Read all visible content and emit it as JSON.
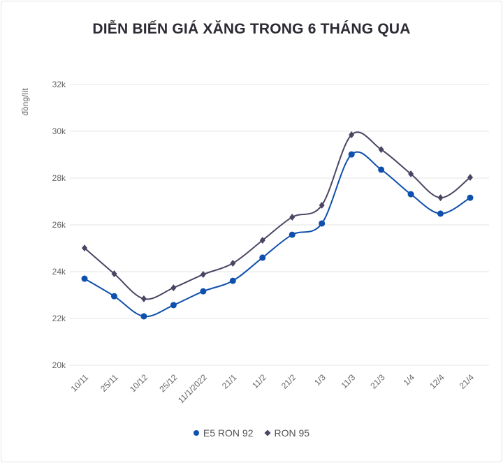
{
  "chart_data": {
    "type": "line",
    "title": "DIỄN BIẾN GIÁ XĂNG TRONG 6 THÁNG QUA",
    "ylabel": "đồng/lít",
    "xlabel": "",
    "ylim": [
      20000,
      32000
    ],
    "yticks": [
      20000,
      22000,
      24000,
      26000,
      28000,
      30000,
      32000
    ],
    "ytick_labels": [
      "20k",
      "22k",
      "24k",
      "26k",
      "28k",
      "30k",
      "32k"
    ],
    "grid": true,
    "legend_placement": "bottom",
    "categories": [
      "10/11",
      "25/11",
      "10/12",
      "25/12",
      "11/1/2022",
      "21/1",
      "11/2",
      "21/2",
      "1/3",
      "11/3",
      "21/3",
      "1/4",
      "12/4",
      "21/4"
    ],
    "series": [
      {
        "name": "E5 RON 92",
        "color": "#0f4fad",
        "marker": "circle",
        "values": [
          23700,
          22950,
          22090,
          22570,
          23160,
          23610,
          24600,
          25580,
          26060,
          29010,
          28360,
          27310,
          26480,
          27160
        ]
      },
      {
        "name": "RON 95",
        "color": "#4b4563",
        "marker": "diamond",
        "values": [
          25010,
          23910,
          22840,
          23310,
          23880,
          24360,
          25340,
          26330,
          26840,
          29850,
          29220,
          28180,
          27160,
          28030
        ]
      }
    ]
  }
}
